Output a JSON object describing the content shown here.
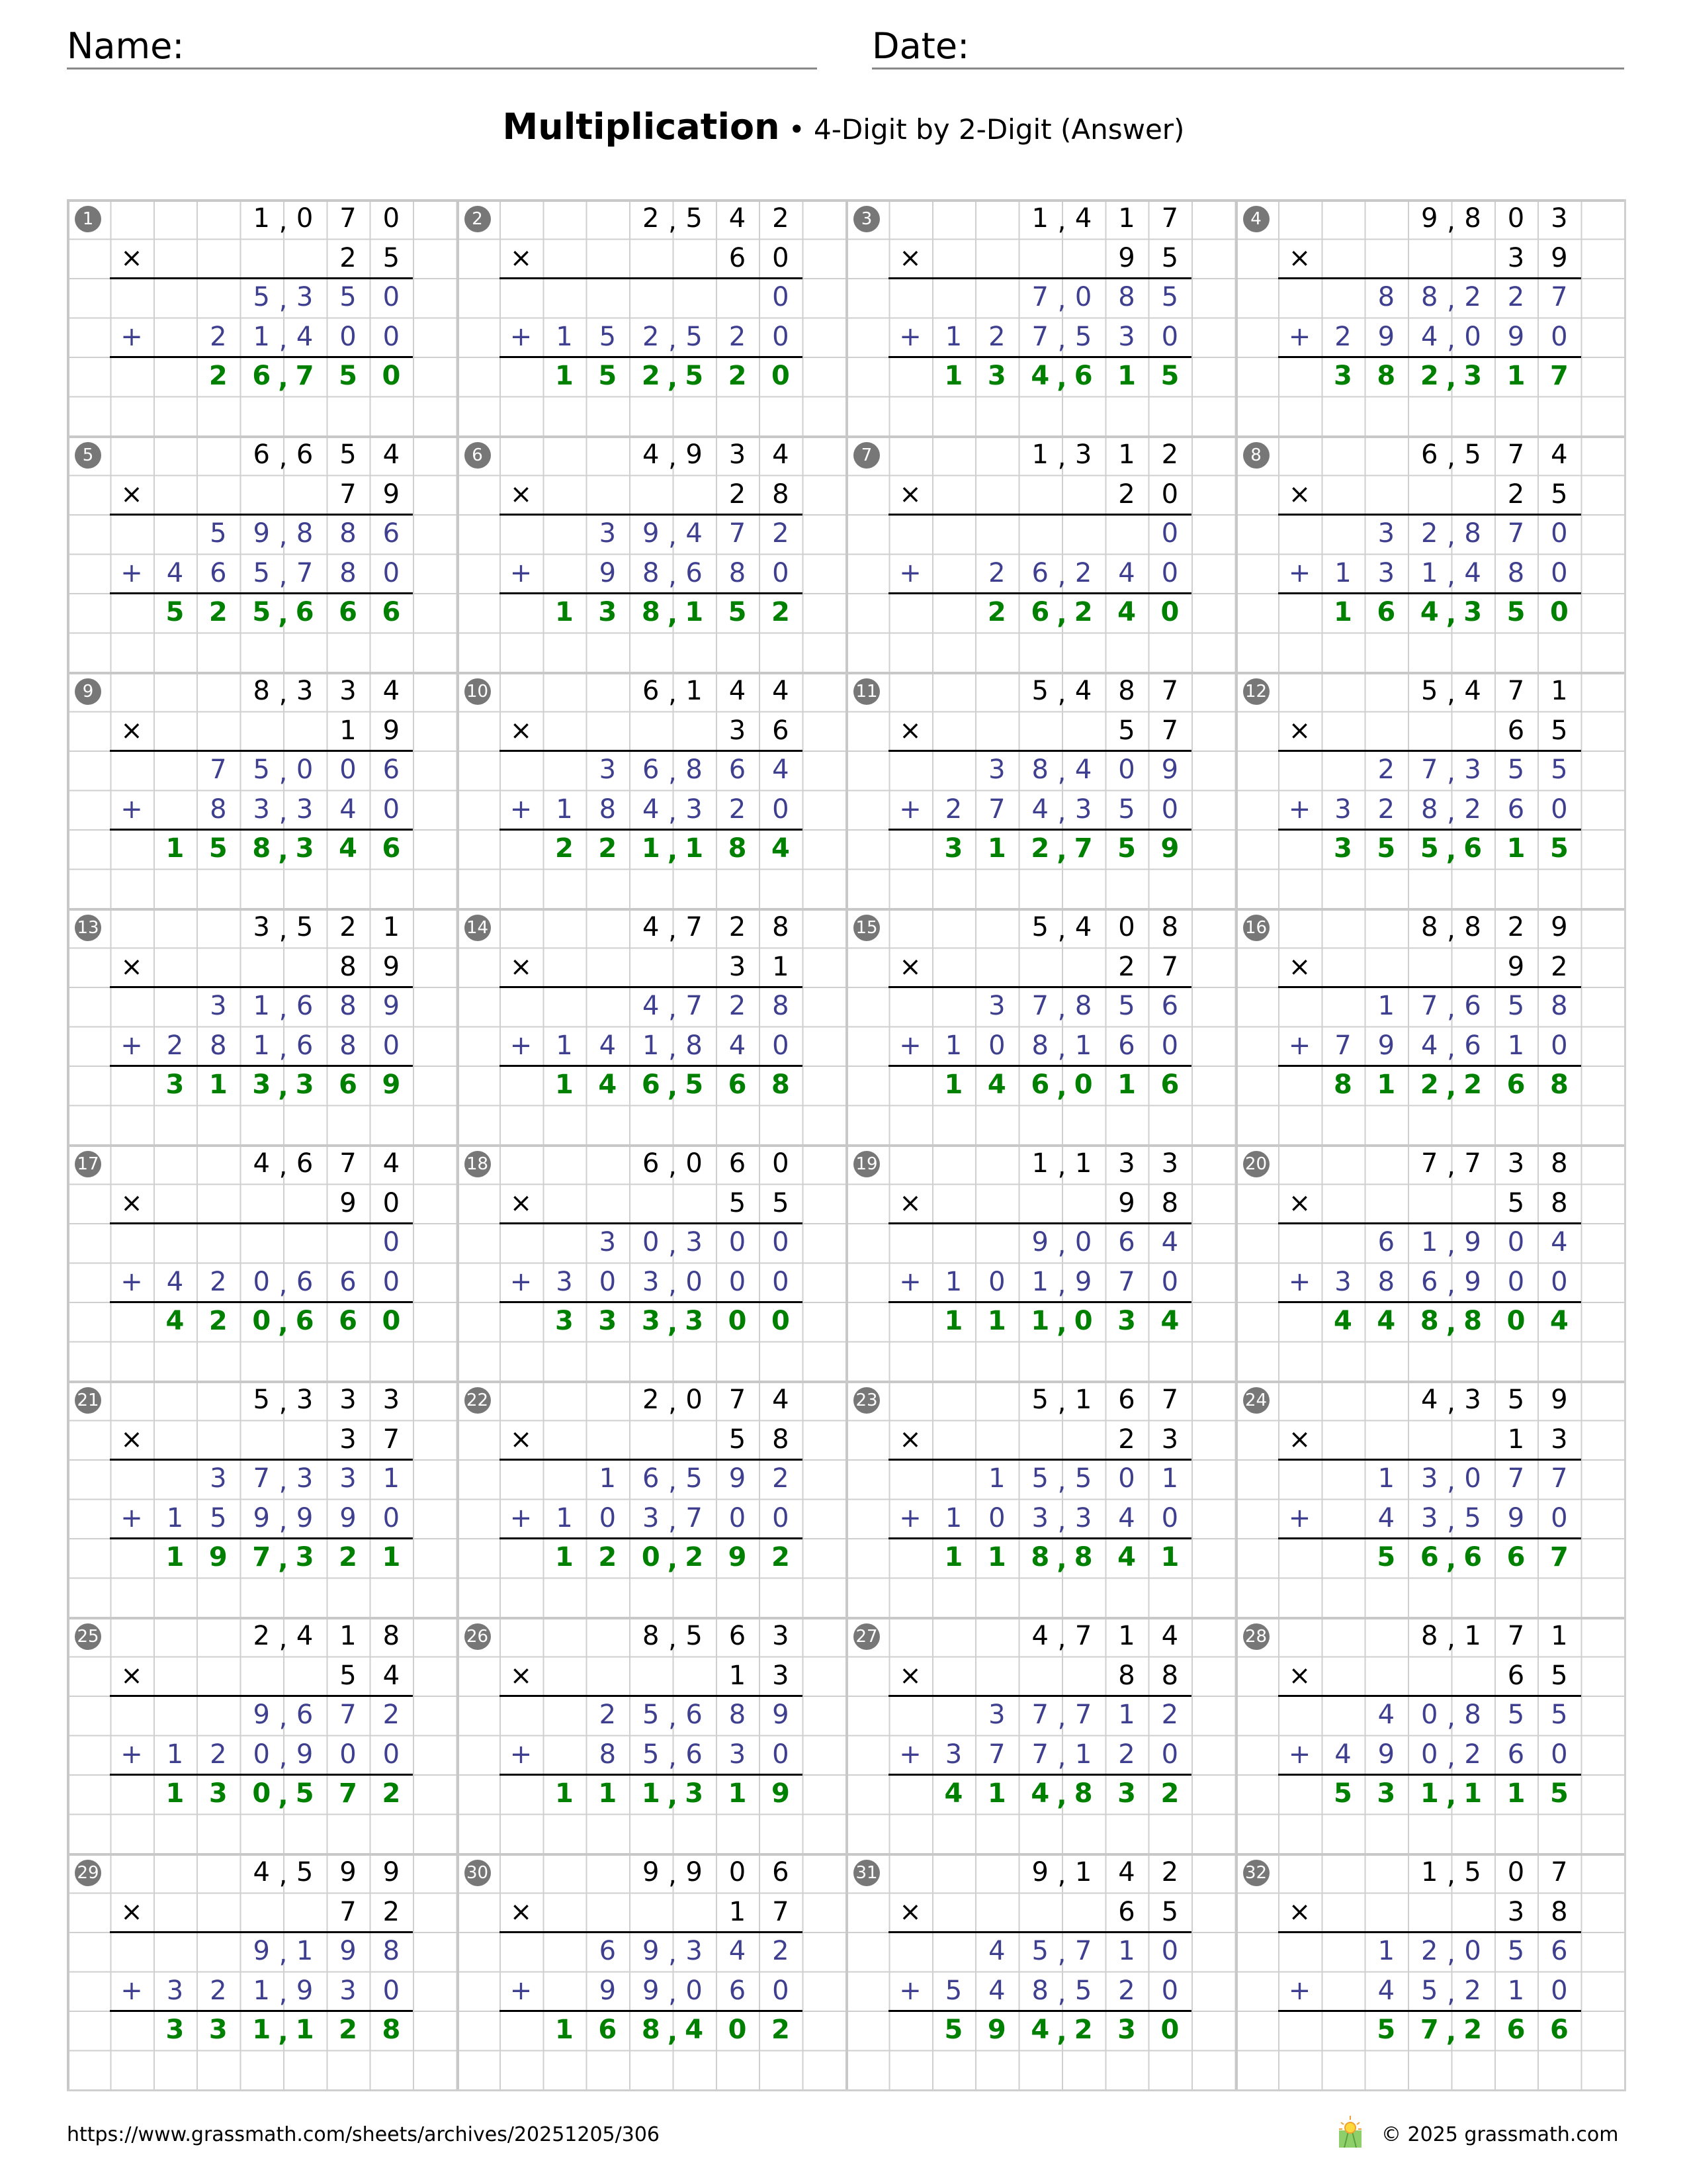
{
  "header": {
    "name_label": "Name:",
    "date_label": "Date:"
  },
  "title": {
    "main": "Multiplication",
    "separator": "•",
    "subtitle": "4-Digit by 2-Digit (Answer)"
  },
  "symbols": {
    "times": "×",
    "plus": "+"
  },
  "colors": {
    "multiplicand": "#000000",
    "partial": "#3f3f8f",
    "answer": "#008000",
    "badge": "#777777",
    "grid": "#cfcfcf"
  },
  "problems": [
    {
      "n": "1",
      "a": "1,070",
      "b": "25",
      "p1": "5,350",
      "p2": "21,400",
      "ans": "26,750"
    },
    {
      "n": "2",
      "a": "2,542",
      "b": "60",
      "p1": "0",
      "p2": "152,520",
      "ans": "152,520"
    },
    {
      "n": "3",
      "a": "1,417",
      "b": "95",
      "p1": "7,085",
      "p2": "127,530",
      "ans": "134,615"
    },
    {
      "n": "4",
      "a": "9,803",
      "b": "39",
      "p1": "88,227",
      "p2": "294,090",
      "ans": "382,317"
    },
    {
      "n": "5",
      "a": "6,654",
      "b": "79",
      "p1": "59,886",
      "p2": "465,780",
      "ans": "525,666"
    },
    {
      "n": "6",
      "a": "4,934",
      "b": "28",
      "p1": "39,472",
      "p2": "98,680",
      "ans": "138,152"
    },
    {
      "n": "7",
      "a": "1,312",
      "b": "20",
      "p1": "0",
      "p2": "26,240",
      "ans": "26,240"
    },
    {
      "n": "8",
      "a": "6,574",
      "b": "25",
      "p1": "32,870",
      "p2": "131,480",
      "ans": "164,350"
    },
    {
      "n": "9",
      "a": "8,334",
      "b": "19",
      "p1": "75,006",
      "p2": "83,340",
      "ans": "158,346"
    },
    {
      "n": "10",
      "a": "6,144",
      "b": "36",
      "p1": "36,864",
      "p2": "184,320",
      "ans": "221,184"
    },
    {
      "n": "11",
      "a": "5,487",
      "b": "57",
      "p1": "38,409",
      "p2": "274,350",
      "ans": "312,759"
    },
    {
      "n": "12",
      "a": "5,471",
      "b": "65",
      "p1": "27,355",
      "p2": "328,260",
      "ans": "355,615"
    },
    {
      "n": "13",
      "a": "3,521",
      "b": "89",
      "p1": "31,689",
      "p2": "281,680",
      "ans": "313,369"
    },
    {
      "n": "14",
      "a": "4,728",
      "b": "31",
      "p1": "4,728",
      "p2": "141,840",
      "ans": "146,568"
    },
    {
      "n": "15",
      "a": "5,408",
      "b": "27",
      "p1": "37,856",
      "p2": "108,160",
      "ans": "146,016"
    },
    {
      "n": "16",
      "a": "8,829",
      "b": "92",
      "p1": "17,658",
      "p2": "794,610",
      "ans": "812,268"
    },
    {
      "n": "17",
      "a": "4,674",
      "b": "90",
      "p1": "0",
      "p2": "420,660",
      "ans": "420,660"
    },
    {
      "n": "18",
      "a": "6,060",
      "b": "55",
      "p1": "30,300",
      "p2": "303,000",
      "ans": "333,300"
    },
    {
      "n": "19",
      "a": "1,133",
      "b": "98",
      "p1": "9,064",
      "p2": "101,970",
      "ans": "111,034"
    },
    {
      "n": "20",
      "a": "7,738",
      "b": "58",
      "p1": "61,904",
      "p2": "386,900",
      "ans": "448,804"
    },
    {
      "n": "21",
      "a": "5,333",
      "b": "37",
      "p1": "37,331",
      "p2": "159,990",
      "ans": "197,321"
    },
    {
      "n": "22",
      "a": "2,074",
      "b": "58",
      "p1": "16,592",
      "p2": "103,700",
      "ans": "120,292"
    },
    {
      "n": "23",
      "a": "5,167",
      "b": "23",
      "p1": "15,501",
      "p2": "103,340",
      "ans": "118,841"
    },
    {
      "n": "24",
      "a": "4,359",
      "b": "13",
      "p1": "13,077",
      "p2": "43,590",
      "ans": "56,667"
    },
    {
      "n": "25",
      "a": "2,418",
      "b": "54",
      "p1": "9,672",
      "p2": "120,900",
      "ans": "130,572"
    },
    {
      "n": "26",
      "a": "8,563",
      "b": "13",
      "p1": "25,689",
      "p2": "85,630",
      "ans": "111,319"
    },
    {
      "n": "27",
      "a": "4,714",
      "b": "88",
      "p1": "37,712",
      "p2": "377,120",
      "ans": "414,832"
    },
    {
      "n": "28",
      "a": "8,171",
      "b": "65",
      "p1": "40,855",
      "p2": "490,260",
      "ans": "531,115"
    },
    {
      "n": "29",
      "a": "4,599",
      "b": "72",
      "p1": "9,198",
      "p2": "321,930",
      "ans": "331,128"
    },
    {
      "n": "30",
      "a": "9,906",
      "b": "17",
      "p1": "69,342",
      "p2": "99,060",
      "ans": "168,402"
    },
    {
      "n": "31",
      "a": "9,142",
      "b": "65",
      "p1": "45,710",
      "p2": "548,520",
      "ans": "594,230"
    },
    {
      "n": "32",
      "a": "1,507",
      "b": "38",
      "p1": "12,056",
      "p2": "45,210",
      "ans": "57,266"
    }
  ],
  "footer": {
    "url": "https://www.grassmath.com/sheets/archives/20251205/306",
    "copyright": "© 2025 grassmath.com",
    "logo_icon": "sun-over-grass-icon"
  }
}
